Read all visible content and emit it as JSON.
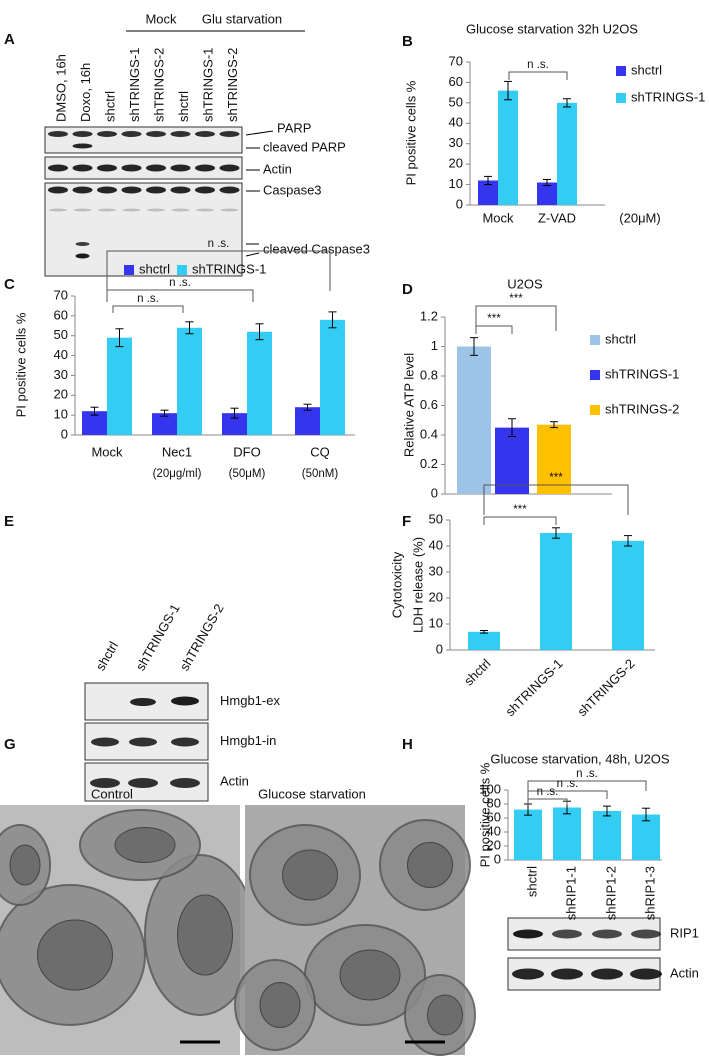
{
  "panel_labels": [
    "A",
    "B",
    "C",
    "D",
    "E",
    "F",
    "G",
    "H"
  ],
  "blot_a": {
    "groups": [
      "Mock",
      "Glu starvation"
    ],
    "lanes": [
      "DMSO, 16h",
      "Doxo, 16h",
      "shctrl",
      "shTRINGS-1",
      "shTRINGS-2",
      "shctrl",
      "shTRINGS-1",
      "shTRINGS-2"
    ],
    "bands": [
      "PARP",
      "cleaved PARP",
      "Actin",
      "Caspase3",
      "cleaved Caspase3"
    ]
  },
  "blot_e": {
    "lanes": [
      "shctrl",
      "shTRINGS-1",
      "shTRINGS-2"
    ],
    "bands": [
      "Hmgb1-ex",
      "Hmgb1-in",
      "Actin"
    ]
  },
  "micrographs": {
    "labels": [
      "Control",
      "Glucose  starvation"
    ]
  },
  "blot_h": {
    "bands": [
      "RIP1",
      "Actin"
    ]
  },
  "chart_data": [
    {
      "type": "bar",
      "title": "Glucose starvation  32h  U2OS",
      "ylabel": "PI positive cells %",
      "categories": [
        "Mock",
        "Z-VAD"
      ],
      "x_note": "(20μM)",
      "series": [
        {
          "name": "shctrl",
          "color": "#3535ee",
          "values": [
            12,
            11
          ],
          "errors": [
            2,
            1.5
          ]
        },
        {
          "name": "shTRINGS-1",
          "color": "#33ccf2",
          "values": [
            56,
            50
          ],
          "errors": [
            4.5,
            2
          ]
        }
      ],
      "ylim": [
        0,
        70
      ],
      "yticks": [
        0,
        10,
        20,
        30,
        40,
        50,
        60,
        70
      ],
      "annotations": [
        "n .s."
      ]
    },
    {
      "type": "bar",
      "ylabel": "PI positive cells %",
      "categories": [
        "Mock",
        "Nec1",
        "DFO",
        "CQ"
      ],
      "category_notes": [
        null,
        "(20μg/ml)",
        "(50μM)",
        "(50nM)"
      ],
      "series": [
        {
          "name": "shctrl",
          "color": "#3535ee",
          "values": [
            12,
            11,
            11,
            14
          ],
          "errors": [
            2,
            1.5,
            2.5,
            1.5
          ]
        },
        {
          "name": "shTRINGS-1",
          "color": "#33ccf2",
          "values": [
            49,
            54,
            52,
            58
          ],
          "errors": [
            4.5,
            3,
            4,
            4
          ]
        }
      ],
      "ylim": [
        0,
        70
      ],
      "yticks": [
        0,
        10,
        20,
        30,
        40,
        50,
        60,
        70
      ],
      "annotations": [
        "n .s.",
        "n .s.",
        "n .s."
      ]
    },
    {
      "type": "bar",
      "title": "U2OS",
      "ylabel": "Relative  ATP  level",
      "categories": [
        "shctrl",
        "shTRINGS-1",
        "shTRINGS-2"
      ],
      "values": [
        1,
        0.45,
        0.47
      ],
      "errors": [
        0.06,
        0.06,
        0.02
      ],
      "colors": [
        "#9dc3e6",
        "#3535ee",
        "#ffc000"
      ],
      "legend": true,
      "ylim": [
        0,
        1.2
      ],
      "yticks": [
        0,
        0.2,
        0.4,
        0.6,
        0.8,
        1,
        1.2
      ],
      "annotations": [
        "***",
        "***"
      ]
    },
    {
      "type": "bar",
      "ylabel": [
        "Cytotoxicity",
        "LDH  release (%)"
      ],
      "categories": [
        "shctrl",
        "shTRINGS-1",
        "shTRINGS-2"
      ],
      "values": [
        7,
        45,
        42
      ],
      "errors": [
        0.5,
        2,
        2
      ],
      "color": "#33ccf2",
      "ylim": [
        0,
        50
      ],
      "yticks": [
        0,
        10,
        20,
        30,
        40,
        50
      ],
      "annotations": [
        "***",
        "***"
      ]
    },
    {
      "type": "bar",
      "title": "Glucose starvation, 48h,  U2OS",
      "ylabel": "PI positive cells %",
      "categories": [
        "shctrl",
        "shRIP1-1",
        "shRIP1-2",
        "shRIP1-3"
      ],
      "values": [
        72,
        75,
        70,
        65
      ],
      "errors": [
        8,
        9,
        7,
        9
      ],
      "color": "#33ccf2",
      "ylim": [
        0,
        100
      ],
      "yticks": [
        0,
        20,
        40,
        60,
        80,
        100
      ],
      "annotations": [
        "n .s.",
        "n .s.",
        "n .s."
      ]
    }
  ]
}
